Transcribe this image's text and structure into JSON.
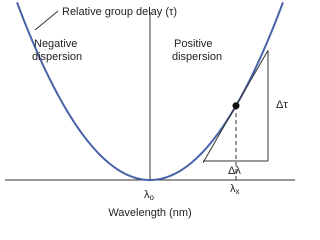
{
  "curve_label": "Relative group delay (τ)",
  "regions": {
    "negative": [
      "Negative",
      "dispersion"
    ],
    "positive": [
      "Positive",
      "dispersion"
    ]
  },
  "delta_tau": "Δτ",
  "delta_lambda": "Δλ",
  "lambda_o": {
    "symbol": "λ",
    "subscript": "o"
  },
  "lambda_x": {
    "symbol": "λ",
    "subscript": "x"
  },
  "x_axis_label": "Wavelength (nm)"
}
